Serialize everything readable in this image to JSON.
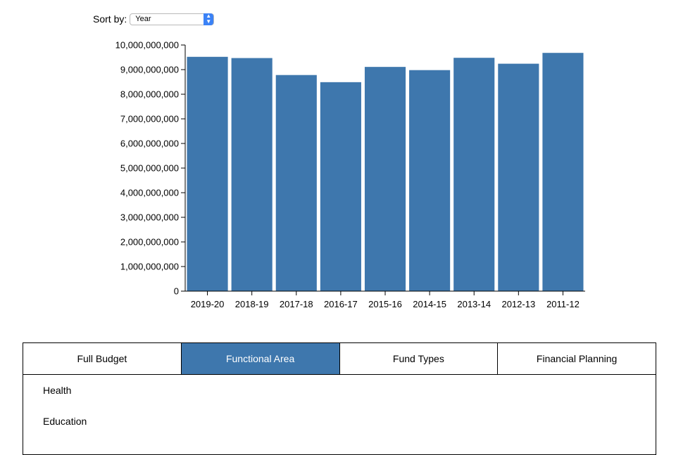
{
  "sort": {
    "label": "Sort by:",
    "selected": "Year"
  },
  "colors": {
    "bar": "#3e77ad",
    "active_tab": "#3e77ad",
    "select_arrow": "#3b82f6"
  },
  "chart_data": {
    "type": "bar",
    "categories": [
      "2019-20",
      "2018-19",
      "2017-18",
      "2016-17",
      "2015-16",
      "2014-15",
      "2013-14",
      "2012-13",
      "2011-12"
    ],
    "values": [
      9520000000,
      9470000000,
      8780000000,
      8490000000,
      9110000000,
      8980000000,
      9480000000,
      9240000000,
      9680000000
    ],
    "ylim": [
      0,
      10000000000
    ],
    "yticks": [
      "0",
      "1,000,000,000",
      "2,000,000,000",
      "3,000,000,000",
      "4,000,000,000",
      "5,000,000,000",
      "6,000,000,000",
      "7,000,000,000",
      "8,000,000,000",
      "9,000,000,000",
      "10,000,000,000"
    ],
    "title": "",
    "xlabel": "",
    "ylabel": "",
    "grid": false,
    "legend": "none"
  },
  "tabs": [
    {
      "label": "Full Budget",
      "active": false
    },
    {
      "label": "Functional Area",
      "active": true
    },
    {
      "label": "Fund Types",
      "active": false
    },
    {
      "label": "Financial Planning",
      "active": false
    }
  ],
  "list_items": [
    "Health",
    "Education"
  ]
}
